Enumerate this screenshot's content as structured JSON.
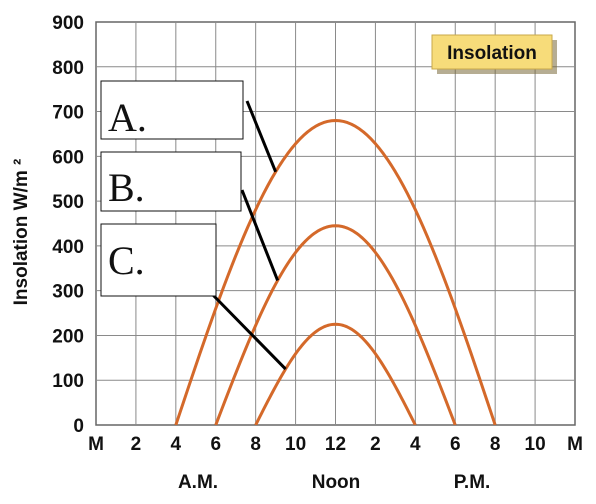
{
  "chart_data": {
    "type": "line",
    "title": "Insolation",
    "xlabel": "",
    "ylabel": "Insolation W/m ²",
    "ylim": [
      0,
      900
    ],
    "yticks": [
      0,
      100,
      200,
      300,
      400,
      500,
      600,
      700,
      800,
      900
    ],
    "x_hours": [
      0,
      2,
      4,
      6,
      8,
      10,
      12,
      14,
      16,
      18,
      20,
      22,
      24
    ],
    "x_tick_labels": [
      "M",
      "2",
      "4",
      "6",
      "8",
      "10",
      "12",
      "2",
      "4",
      "6",
      "8",
      "10",
      "M"
    ],
    "period_labels": [
      "A.M.",
      "Noon",
      "P.M."
    ],
    "grid": true,
    "line_color": "#d4692a",
    "series": [
      {
        "name": "A.",
        "start_hour": 4,
        "end_hour": 20,
        "peak_hour": 12,
        "peak_value": 680
      },
      {
        "name": "B.",
        "start_hour": 6,
        "end_hour": 18,
        "peak_hour": 12,
        "peak_value": 445
      },
      {
        "name": "C.",
        "start_hour": 8,
        "end_hour": 16,
        "peak_hour": 12,
        "peak_value": 225
      }
    ]
  }
}
